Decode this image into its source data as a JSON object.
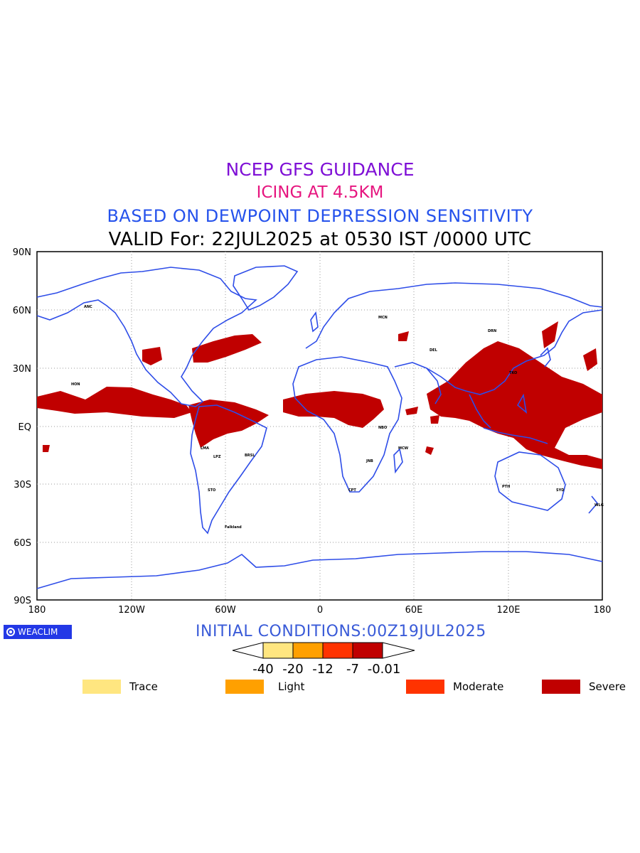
{
  "titles": {
    "line1": "NCEP GFS GUIDANCE",
    "line2": "ICING AT 4.5KM",
    "line3": "BASED ON DEWPOINT DEPRESSION SENSITIVITY",
    "line4": "VALID For: 22JUL2025 at 0530 IST /0000 UTC"
  },
  "colors": {
    "title1": "#7f10d6",
    "title2": "#e6157f",
    "title3": "#2552ec",
    "title4": "#000000",
    "coast": "#2e4de8",
    "trace": "#ffe680",
    "light": "#ffa000",
    "moderate": "#ff3300",
    "severe": "#c00000"
  },
  "axes": {
    "lat_labels": [
      "90N",
      "60N",
      "30N",
      "EQ",
      "30S",
      "60S",
      "90S"
    ],
    "lon_labels": [
      "180",
      "120W",
      "60W",
      "0",
      "60E",
      "120E",
      "180"
    ]
  },
  "init_text": "INITIAL CONDITIONS:00Z19JUL2025",
  "logo_text": "WEACLIM",
  "scale": {
    "bounds": [
      "-40",
      "-20",
      "-12",
      "-7",
      "-0.01"
    ]
  },
  "legend": [
    {
      "label": "Trace",
      "color": "#ffe680"
    },
    {
      "label": "Light",
      "color": "#ffa000"
    },
    {
      "label": "Moderate",
      "color": "#ff3300"
    },
    {
      "label": "Severe",
      "color": "#c00000"
    }
  ],
  "stations": [
    "ANC",
    "HON",
    "MCN",
    "BRSL",
    "LPZ",
    "LMA",
    "STO",
    "Falkland",
    "CPT",
    "NBO",
    "JNB",
    "MCW",
    "PTH",
    "SYD",
    "WLG",
    "DRN",
    "TKO",
    "DEL"
  ]
}
